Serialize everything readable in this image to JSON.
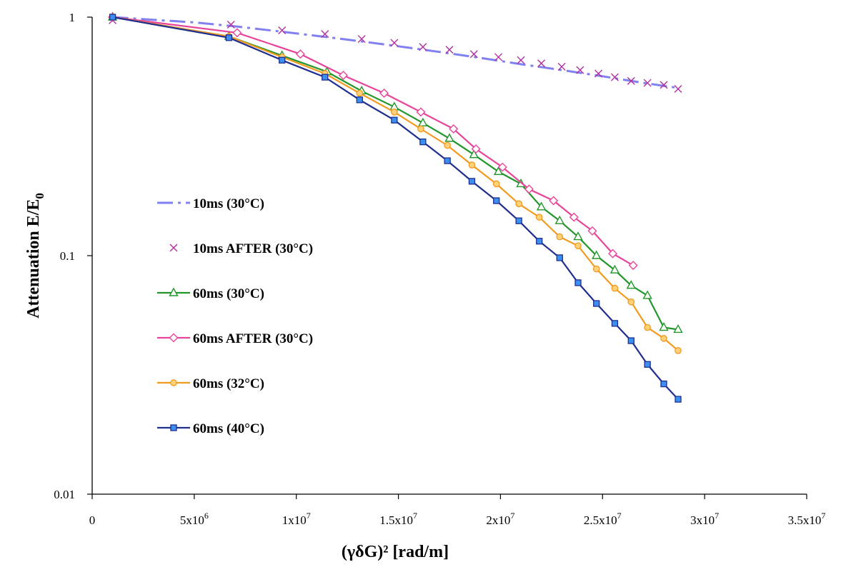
{
  "chart_data": {
    "type": "line",
    "title": "",
    "xlabel": "(γδG)² [rad/m]",
    "ylabel": "Attenuation E/E₀",
    "y_scale": "log",
    "xlim": [
      0,
      35000000
    ],
    "ylim": [
      0.01,
      1
    ],
    "x_ticks": [
      0,
      5000000,
      10000000,
      15000000,
      20000000,
      25000000,
      30000000,
      35000000
    ],
    "x_tick_labels": [
      {
        "base": "0",
        "exp": ""
      },
      {
        "base": "5x10",
        "exp": "6"
      },
      {
        "base": "1x10",
        "exp": "7"
      },
      {
        "base": "1.5x10",
        "exp": "7"
      },
      {
        "base": "2x10",
        "exp": "7"
      },
      {
        "base": "2.5x10",
        "exp": "7"
      },
      {
        "base": "3x10",
        "exp": "7"
      },
      {
        "base": "3.5x10",
        "exp": "7"
      }
    ],
    "y_ticks": [
      0.01,
      0.1,
      1
    ],
    "y_tick_labels": [
      "0.01",
      "0.1",
      "1"
    ],
    "grid": false,
    "legend_position": "left",
    "series": [
      {
        "name": "10ms (30°C)",
        "color": "#8080f0",
        "marker": "none",
        "dash": "dashdot",
        "x": [
          1000000,
          3000000,
          5000000,
          7000000,
          9000000,
          11000000,
          13000000,
          15000000,
          17000000,
          19000000,
          21000000,
          23000000,
          25000000,
          27000000,
          28700000
        ],
        "y": [
          1,
          0.975,
          0.95,
          0.915,
          0.875,
          0.835,
          0.795,
          0.755,
          0.715,
          0.675,
          0.635,
          0.6,
          0.565,
          0.53,
          0.505
        ]
      },
      {
        "name": "10ms AFTER (30°C)",
        "color": "#b030a0",
        "marker": "x",
        "dash": "none",
        "x": [
          1000000,
          6800000,
          9300000,
          11400000,
          13200000,
          14800000,
          16200000,
          17500000,
          18700000,
          19900000,
          21000000,
          22000000,
          23000000,
          23900000,
          24800000,
          25600000,
          26400000,
          27200000,
          28000000,
          28700000
        ],
        "y": [
          0.97,
          0.93,
          0.88,
          0.85,
          0.81,
          0.78,
          0.75,
          0.73,
          0.7,
          0.68,
          0.66,
          0.64,
          0.62,
          0.6,
          0.58,
          0.56,
          0.54,
          0.53,
          0.52,
          0.5
        ]
      },
      {
        "name": "60ms (30°C)",
        "color": "#22962a",
        "marker": "triangle",
        "dash": "none",
        "x": [
          1000000,
          6700000,
          9300000,
          11500000,
          13200000,
          14800000,
          16200000,
          17500000,
          18700000,
          19900000,
          21000000,
          22000000,
          22900000,
          23800000,
          24700000,
          25600000,
          26400000,
          27200000,
          28000000,
          28700000
        ],
        "y": [
          1,
          0.83,
          0.69,
          0.59,
          0.49,
          0.42,
          0.36,
          0.31,
          0.265,
          0.225,
          0.2,
          0.16,
          0.14,
          0.12,
          0.1,
          0.087,
          0.075,
          0.068,
          0.05,
          0.049
        ]
      },
      {
        "name": "60ms AFTER (30°C)",
        "color": "#e8449a",
        "marker": "diamond",
        "dash": "none",
        "x": [
          1000000,
          7100000,
          10200000,
          12300000,
          14300000,
          16100000,
          17700000,
          18800000,
          20100000,
          21400000,
          22600000,
          23600000,
          24500000,
          25500000,
          26500000
        ],
        "y": [
          1,
          0.86,
          0.7,
          0.57,
          0.48,
          0.4,
          0.34,
          0.28,
          0.235,
          0.19,
          0.17,
          0.145,
          0.127,
          0.102,
          0.091
        ]
      },
      {
        "name": "60ms (32°C)",
        "color": "#f29a1f",
        "marker": "circle",
        "dash": "none",
        "x": [
          1000000,
          6700000,
          9300000,
          11400000,
          13100000,
          14800000,
          16100000,
          17400000,
          18600000,
          19800000,
          20900000,
          21900000,
          22900000,
          23800000,
          24700000,
          25600000,
          26400000,
          27200000,
          28000000,
          28700000
        ],
        "y": [
          1,
          0.83,
          0.68,
          0.58,
          0.48,
          0.4,
          0.34,
          0.29,
          0.24,
          0.2,
          0.165,
          0.145,
          0.12,
          0.11,
          0.088,
          0.073,
          0.064,
          0.05,
          0.045,
          0.04
        ]
      },
      {
        "name": "60ms (40°C)",
        "color": "#1f2f8f",
        "marker": "square",
        "dash": "none",
        "x": [
          1000000,
          6700000,
          9300000,
          11400000,
          13100000,
          14800000,
          16200000,
          17400000,
          18600000,
          19800000,
          20900000,
          21900000,
          22900000,
          23800000,
          24700000,
          25600000,
          26400000,
          27200000,
          28000000,
          28700000
        ],
        "y": [
          1,
          0.82,
          0.66,
          0.56,
          0.45,
          0.37,
          0.3,
          0.25,
          0.205,
          0.17,
          0.14,
          0.115,
          0.098,
          0.077,
          0.063,
          0.052,
          0.044,
          0.035,
          0.029,
          0.025
        ]
      }
    ]
  }
}
